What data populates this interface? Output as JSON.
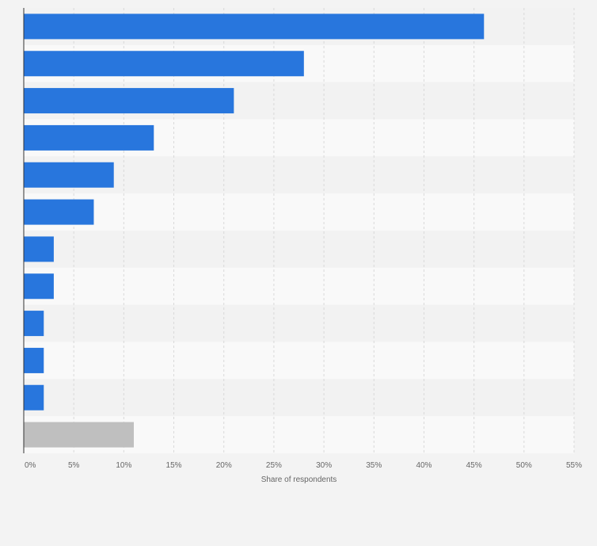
{
  "chart_data": {
    "type": "bar",
    "orientation": "horizontal",
    "categories": [
      "",
      "",
      "",
      "",
      "",
      "",
      "",
      "",
      "",
      "",
      "",
      ""
    ],
    "values": [
      46,
      28,
      21,
      13,
      9,
      7,
      3,
      3,
      2,
      2,
      2,
      11
    ],
    "bar_colors": [
      "#2876dd",
      "#2876dd",
      "#2876dd",
      "#2876dd",
      "#2876dd",
      "#2876dd",
      "#2876dd",
      "#2876dd",
      "#2876dd",
      "#2876dd",
      "#2876dd",
      "#bfbfbf"
    ],
    "xlabel": "Share of respondents",
    "ylabel": "",
    "xlim": [
      0,
      55
    ],
    "x_ticks": [
      0,
      5,
      10,
      15,
      20,
      25,
      30,
      35,
      40,
      45,
      50,
      55
    ],
    "x_tick_labels": [
      "0%",
      "5%",
      "10%",
      "15%",
      "20%",
      "25%",
      "30%",
      "35%",
      "40%",
      "45%",
      "50%",
      "55%"
    ],
    "grid": true,
    "colors": {
      "background": "#f3f3f3",
      "row_band_light": "#f9f9f9",
      "row_band_dark": "#f2f2f2",
      "grid": "#d9d9d9",
      "axis": "#333333"
    }
  }
}
